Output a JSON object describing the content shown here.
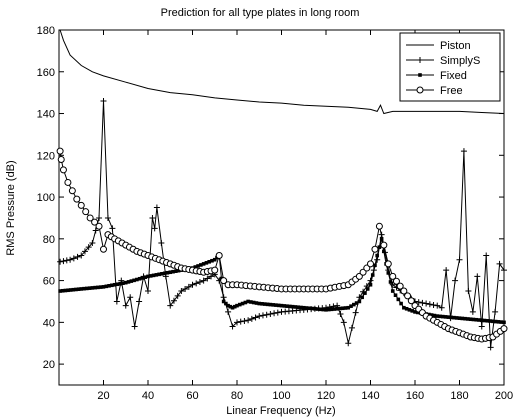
{
  "chart_data": {
    "type": "line",
    "title": "Prediction for all type plates in long room",
    "xlabel": "Linear Frequency (Hz)",
    "ylabel": "RMS Pressure (dB)",
    "xlim": [
      0,
      200
    ],
    "ylim": [
      10,
      180
    ],
    "xticks": [
      20,
      40,
      60,
      80,
      100,
      120,
      140,
      160,
      180,
      200
    ],
    "yticks": [
      20,
      40,
      60,
      80,
      100,
      120,
      140,
      160,
      180
    ],
    "grid": false,
    "legend": "top-right",
    "series": [
      {
        "name": "Piston",
        "marker": "none",
        "x": [
          0.5,
          2,
          5,
          10,
          15,
          20,
          30,
          40,
          50,
          60,
          70,
          80,
          90,
          100,
          110,
          120,
          130,
          140,
          143,
          144.5,
          146,
          150,
          160,
          170,
          180,
          190,
          200
        ],
        "y": [
          180,
          175,
          168,
          163,
          160,
          158,
          155,
          152,
          150,
          149,
          147.5,
          146.5,
          145.5,
          145,
          144,
          143.5,
          143,
          142,
          141,
          144,
          140,
          141,
          141,
          141,
          141,
          140.5,
          140
        ]
      },
      {
        "name": "SimplyS",
        "marker": "plus",
        "x": [
          0.5,
          5,
          10,
          15,
          18,
          20,
          22,
          24,
          26,
          28,
          30,
          32,
          34,
          36,
          38,
          40,
          42,
          43,
          44,
          46,
          48,
          50,
          55,
          60,
          65,
          70,
          72,
          74,
          76,
          78,
          80,
          85,
          90,
          95,
          100,
          110,
          120,
          125,
          128,
          130,
          135,
          140,
          143,
          145,
          148,
          150,
          160,
          170,
          172,
          174,
          176,
          178,
          180,
          182,
          184,
          186,
          188,
          190,
          192,
          194,
          196,
          198,
          200
        ],
        "y": [
          69,
          70,
          72,
          78,
          90,
          146,
          90,
          85,
          50,
          60,
          48,
          52,
          38,
          50,
          62,
          55,
          90,
          85,
          95,
          78,
          62,
          48,
          55,
          58,
          60,
          63,
          60,
          52,
          45,
          38,
          40,
          41,
          43,
          44,
          45,
          46,
          47,
          48,
          40,
          30,
          52,
          60,
          70,
          82,
          65,
          58,
          50,
          48,
          47,
          65,
          42,
          60,
          70,
          122,
          55,
          45,
          62,
          38,
          72,
          28,
          45,
          68,
          65
        ]
      },
      {
        "name": "Fixed",
        "marker": "square",
        "x": [
          0.5,
          10,
          20,
          30,
          40,
          50,
          60,
          65,
          70,
          72,
          74,
          76,
          78,
          80,
          85,
          90,
          100,
          110,
          120,
          130,
          135,
          140,
          143,
          145,
          147,
          150,
          155,
          160,
          170,
          180,
          190,
          200
        ],
        "y": [
          55,
          56,
          57,
          59,
          62,
          64,
          66,
          68,
          70,
          72,
          50,
          48,
          47,
          48,
          50,
          49,
          48,
          47,
          46,
          47,
          50,
          58,
          72,
          80,
          68,
          55,
          47,
          45,
          43,
          42,
          41,
          40
        ]
      },
      {
        "name": "Free",
        "marker": "circle",
        "x": [
          0.5,
          1,
          2,
          4,
          6,
          8,
          10,
          12,
          14,
          16,
          18,
          20,
          22,
          25,
          30,
          35,
          40,
          45,
          50,
          55,
          60,
          65,
          70,
          72,
          74,
          76,
          78,
          80,
          90,
          100,
          110,
          120,
          130,
          135,
          140,
          142,
          144,
          146,
          148,
          150,
          155,
          160,
          165,
          170,
          175,
          180,
          185,
          190,
          195,
          200
        ],
        "y": [
          122,
          118,
          113,
          107,
          103,
          99,
          96,
          93,
          90,
          88,
          86,
          75,
          82,
          80,
          77,
          74,
          72,
          70,
          68,
          66,
          65,
          64,
          65,
          72,
          60,
          58,
          58,
          58,
          57,
          56,
          56,
          56,
          58,
          62,
          68,
          75,
          86,
          77,
          68,
          62,
          55,
          48,
          43,
          40,
          37,
          35,
          33,
          32,
          33,
          37
        ]
      }
    ]
  }
}
